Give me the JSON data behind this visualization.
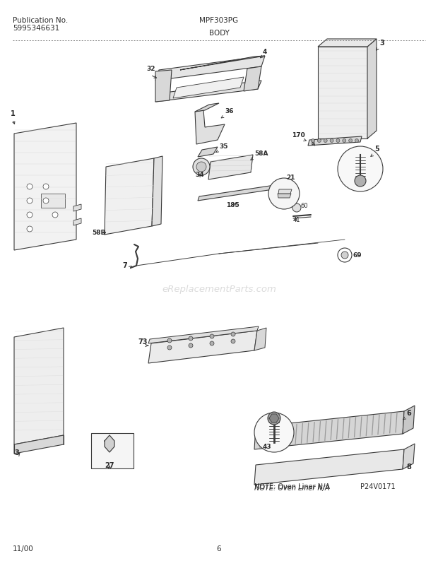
{
  "title_left_line1": "Publication No.",
  "title_left_line2": "5995346631",
  "title_center": "MPF303PG",
  "subtitle_center": "BODY",
  "footer_left": "11/00",
  "footer_center": "6",
  "watermark": "eReplacementParts.com",
  "note_text": "NOTE: Oven Liner N/A",
  "part_code": "P24V0171",
  "bg_color": "#ffffff",
  "lc": "#3a3a3a",
  "tc": "#2a2a2a",
  "fill_light": "#f0f0f0",
  "fill_mid": "#e0e0e0",
  "fill_dark": "#c8c8c8",
  "fill_white": "#fafafa"
}
